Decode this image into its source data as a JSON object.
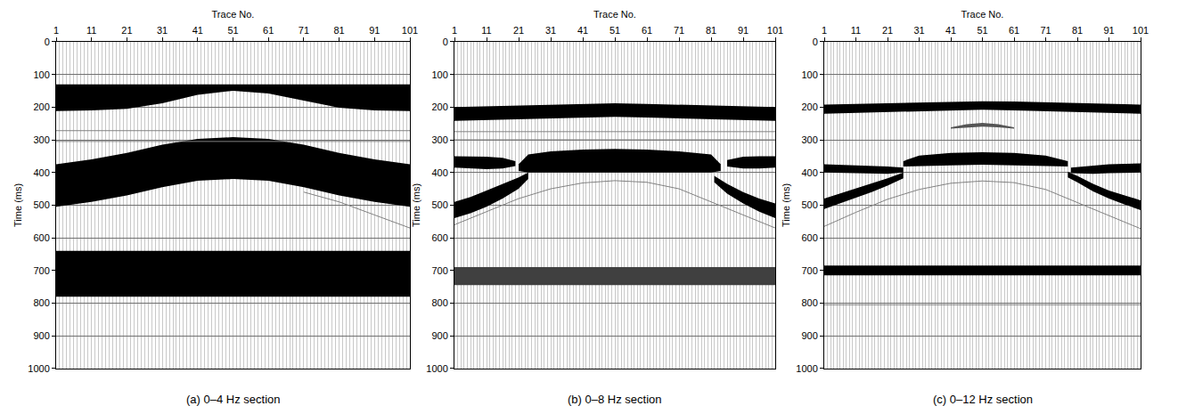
{
  "chart_data": [
    {
      "type": "band",
      "title": "(a) 0–4 Hz section",
      "x_label": "Trace No.",
      "y_label": "Time (ms)",
      "xlim": [
        1,
        101
      ],
      "xticks": [
        1,
        11,
        21,
        31,
        41,
        51,
        61,
        71,
        81,
        91,
        101
      ],
      "ylim": [
        1000,
        0
      ],
      "yticks": [
        0,
        100,
        200,
        300,
        400,
        500,
        600,
        700,
        800,
        900,
        1000
      ],
      "grid": true,
      "events": [
        {
          "color": "#000000",
          "x": [
            1,
            11,
            21,
            31,
            41,
            51,
            61,
            71,
            81,
            91,
            101
          ],
          "top": [
            130,
            130,
            130,
            130,
            130,
            130,
            130,
            130,
            130,
            130,
            130
          ],
          "bottom": [
            212,
            210,
            205,
            188,
            162,
            150,
            158,
            180,
            202,
            210,
            212
          ]
        },
        {
          "color": "#000000",
          "x": [
            1,
            11,
            21,
            31,
            41,
            51,
            61,
            71,
            81,
            91,
            101
          ],
          "top": [
            375,
            360,
            340,
            315,
            297,
            292,
            297,
            315,
            340,
            360,
            375
          ],
          "bottom": [
            505,
            490,
            470,
            445,
            425,
            420,
            425,
            445,
            470,
            490,
            505
          ]
        },
        {
          "color": "#000000",
          "x": [
            1,
            11,
            21,
            31,
            41,
            51,
            61,
            71,
            81,
            91,
            101
          ],
          "top": [
            640,
            640,
            640,
            640,
            640,
            640,
            640,
            640,
            640,
            640,
            640
          ],
          "bottom": [
            780,
            780,
            780,
            780,
            780,
            780,
            780,
            780,
            780,
            780,
            780
          ]
        }
      ],
      "lines": [
        {
          "color": "#808080",
          "x": [
            1,
            101
          ],
          "y": [
            272,
            272
          ]
        },
        {
          "color": "#808080",
          "x": [
            1,
            101
          ],
          "y": [
            305,
            305
          ]
        },
        {
          "color": "#808080",
          "x": [
            71,
            81,
            91,
            101
          ],
          "y": [
            460,
            490,
            530,
            570
          ]
        }
      ]
    },
    {
      "type": "band",
      "title": "(b) 0–8 Hz section",
      "x_label": "Trace No.",
      "y_label": "Time (ms)",
      "xlim": [
        1,
        101
      ],
      "xticks": [
        1,
        11,
        21,
        31,
        41,
        51,
        61,
        71,
        81,
        91,
        101
      ],
      "ylim": [
        1000,
        0
      ],
      "yticks": [
        0,
        100,
        200,
        300,
        400,
        500,
        600,
        700,
        800,
        900,
        1000
      ],
      "grid": true,
      "events": [
        {
          "color": "#000000",
          "x": [
            1,
            11,
            21,
            31,
            41,
            51,
            61,
            71,
            81,
            91,
            101
          ],
          "top": [
            200,
            198,
            195,
            192,
            190,
            188,
            190,
            192,
            195,
            198,
            200
          ],
          "bottom": [
            242,
            240,
            237,
            234,
            232,
            230,
            232,
            234,
            237,
            240,
            242
          ]
        },
        {
          "color": "#000000",
          "x": [
            21,
            24,
            31,
            41,
            51,
            61,
            71,
            81,
            84
          ],
          "top": [
            375,
            345,
            335,
            330,
            328,
            330,
            335,
            345,
            375
          ],
          "bottom": [
            395,
            400,
            400,
            400,
            398,
            400,
            400,
            400,
            395
          ]
        },
        {
          "color": "#000000",
          "x": [
            1,
            6,
            11,
            16,
            20
          ],
          "top": [
            350,
            350,
            352,
            355,
            365
          ],
          "bottom": [
            385,
            388,
            390,
            388,
            380
          ]
        },
        {
          "color": "#000000",
          "x": [
            86,
            91,
            96,
            101
          ],
          "top": [
            362,
            352,
            350,
            350
          ],
          "bottom": [
            382,
            388,
            388,
            385
          ]
        },
        {
          "color": "#000000",
          "x": [
            1,
            6,
            11,
            16,
            21,
            24
          ],
          "top": [
            490,
            475,
            455,
            435,
            415,
            400
          ],
          "bottom": [
            540,
            525,
            505,
            480,
            450,
            420
          ]
        },
        {
          "color": "#000000",
          "x": [
            82,
            86,
            91,
            96,
            101
          ],
          "top": [
            410,
            435,
            460,
            480,
            495
          ],
          "bottom": [
            430,
            465,
            495,
            520,
            540
          ]
        },
        {
          "color": "#404040",
          "x": [
            1,
            11,
            21,
            31,
            41,
            51,
            61,
            71,
            81,
            91,
            101
          ],
          "top": [
            690,
            690,
            690,
            690,
            690,
            690,
            690,
            690,
            690,
            690,
            690
          ],
          "bottom": [
            745,
            745,
            745,
            745,
            745,
            745,
            745,
            745,
            745,
            745,
            745
          ]
        }
      ],
      "lines": [
        {
          "color": "#808080",
          "x": [
            1,
            11,
            21,
            31,
            41,
            51,
            61,
            71,
            81,
            91,
            101
          ],
          "y": [
            560,
            520,
            480,
            450,
            432,
            425,
            430,
            450,
            490,
            530,
            570
          ]
        },
        {
          "color": "#808080",
          "x": [
            1,
            101
          ],
          "y": [
            275,
            275
          ]
        },
        {
          "color": "#808080",
          "x": [
            1,
            101
          ],
          "y": [
            300,
            300
          ]
        }
      ]
    },
    {
      "type": "band",
      "title": "(c) 0–12 Hz section",
      "x_label": "Trace No.",
      "y_label": "Time (ms)",
      "xlim": [
        1,
        101
      ],
      "xticks": [
        1,
        11,
        21,
        31,
        41,
        51,
        61,
        71,
        81,
        91,
        101
      ],
      "ylim": [
        1000,
        0
      ],
      "yticks": [
        0,
        100,
        200,
        300,
        400,
        500,
        600,
        700,
        800,
        900,
        1000
      ],
      "grid": true,
      "events": [
        {
          "color": "#000000",
          "x": [
            1,
            11,
            21,
            31,
            41,
            51,
            61,
            71,
            81,
            91,
            101
          ],
          "top": [
            192,
            190,
            188,
            185,
            183,
            182,
            183,
            185,
            188,
            190,
            192
          ],
          "bottom": [
            220,
            218,
            215,
            212,
            210,
            208,
            210,
            212,
            215,
            218,
            220
          ]
        },
        {
          "color": "#555555",
          "x": [
            41,
            46,
            51,
            56,
            61
          ],
          "top": [
            262,
            252,
            248,
            252,
            262
          ],
          "bottom": [
            266,
            262,
            260,
            262,
            266
          ]
        },
        {
          "color": "#000000",
          "x": [
            26,
            31,
            41,
            51,
            61,
            71,
            78
          ],
          "top": [
            365,
            348,
            340,
            338,
            340,
            348,
            365
          ],
          "bottom": [
            382,
            380,
            378,
            376,
            378,
            380,
            382
          ]
        },
        {
          "color": "#000000",
          "x": [
            1,
            11,
            21,
            26
          ],
          "top": [
            375,
            378,
            382,
            385
          ],
          "bottom": [
            400,
            402,
            404,
            400
          ]
        },
        {
          "color": "#000000",
          "x": [
            79,
            86,
            91,
            101
          ],
          "top": [
            385,
            378,
            375,
            372
          ],
          "bottom": [
            402,
            404,
            402,
            400
          ]
        },
        {
          "color": "#000000",
          "x": [
            1,
            6,
            11,
            16,
            21,
            26
          ],
          "top": [
            480,
            465,
            450,
            435,
            418,
            400
          ],
          "bottom": [
            512,
            495,
            478,
            460,
            440,
            418
          ]
        },
        {
          "color": "#000000",
          "x": [
            78,
            81,
            86,
            91,
            96,
            101
          ],
          "top": [
            398,
            410,
            435,
            455,
            470,
            485
          ],
          "bottom": [
            415,
            430,
            458,
            480,
            498,
            515
          ]
        },
        {
          "color": "#000000",
          "x": [
            1,
            11,
            21,
            31,
            41,
            51,
            61,
            71,
            81,
            91,
            101
          ],
          "top": [
            685,
            685,
            685,
            685,
            685,
            685,
            685,
            685,
            685,
            685,
            685
          ],
          "bottom": [
            715,
            715,
            715,
            715,
            715,
            715,
            715,
            715,
            715,
            715,
            715
          ]
        }
      ],
      "lines": [
        {
          "color": "#808080",
          "x": [
            1,
            11,
            21,
            31,
            41,
            51,
            61,
            71,
            81,
            91,
            101
          ],
          "y": [
            565,
            522,
            482,
            452,
            433,
            426,
            431,
            452,
            492,
            532,
            572
          ]
        },
        {
          "color": "#808080",
          "x": [
            1,
            101
          ],
          "y": [
            805,
            805
          ]
        }
      ]
    }
  ]
}
